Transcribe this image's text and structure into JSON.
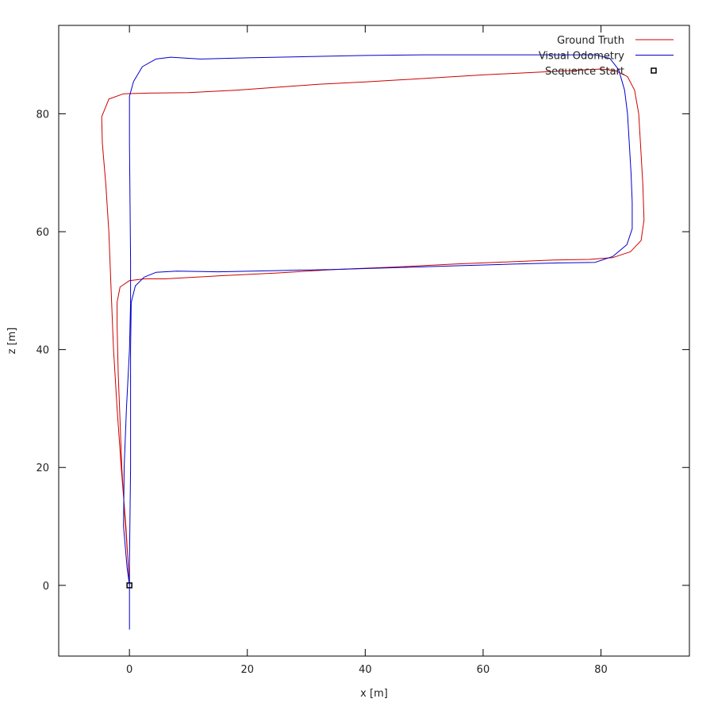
{
  "chart_data": {
    "type": "line",
    "title": "",
    "xlabel": "x [m]",
    "ylabel": "z [m]",
    "xlim": [
      -12,
      95
    ],
    "ylim": [
      -12,
      95
    ],
    "x_ticks": [
      0,
      20,
      40,
      60,
      80
    ],
    "y_ticks": [
      0,
      20,
      40,
      60,
      80
    ],
    "grid": false,
    "legend_position": "top-right",
    "series": [
      {
        "name": "Ground Truth",
        "color": "#cc0000",
        "points": [
          [
            0,
            0
          ],
          [
            -0.3,
            5
          ],
          [
            -0.8,
            12
          ],
          [
            -1.3,
            20
          ],
          [
            -1.6,
            28
          ],
          [
            -1.9,
            36
          ],
          [
            -2.1,
            44
          ],
          [
            -2.1,
            48
          ],
          [
            -1.6,
            50.6
          ],
          [
            0,
            51.7
          ],
          [
            2.5,
            52
          ],
          [
            6,
            52
          ],
          [
            15,
            52.5
          ],
          [
            25,
            53
          ],
          [
            35,
            53.6
          ],
          [
            45,
            54
          ],
          [
            55,
            54.5
          ],
          [
            65,
            54.9
          ],
          [
            72,
            55.2
          ],
          [
            78,
            55.3
          ],
          [
            82,
            55.6
          ],
          [
            85,
            56.6
          ],
          [
            86.8,
            58.5
          ],
          [
            87.3,
            62
          ],
          [
            87.1,
            68
          ],
          [
            86.7,
            75
          ],
          [
            86.4,
            80
          ],
          [
            85.7,
            84
          ],
          [
            84.5,
            86.3
          ],
          [
            82.5,
            87.3
          ],
          [
            80,
            87.6
          ],
          [
            70,
            87.1
          ],
          [
            60,
            86.6
          ],
          [
            50,
            86
          ],
          [
            40,
            85.4
          ],
          [
            32,
            85
          ],
          [
            25,
            84.5
          ],
          [
            18,
            84
          ],
          [
            10,
            83.6
          ],
          [
            3,
            83.5
          ],
          [
            -1,
            83.4
          ],
          [
            -3.5,
            82.5
          ],
          [
            -4.7,
            79.5
          ],
          [
            -4.6,
            75
          ],
          [
            -4,
            68
          ],
          [
            -3.5,
            60
          ],
          [
            -3.1,
            50
          ],
          [
            -2.7,
            40
          ],
          [
            -2.1,
            30
          ],
          [
            -1.4,
            20
          ],
          [
            -0.6,
            10
          ],
          [
            0,
            0
          ]
        ]
      },
      {
        "name": "Visual Odometry",
        "color": "#0000cc",
        "points": [
          [
            0,
            -7.5
          ],
          [
            0,
            -4
          ],
          [
            0,
            0
          ],
          [
            0,
            4
          ],
          [
            0.1,
            12
          ],
          [
            0.2,
            20
          ],
          [
            0.2,
            30
          ],
          [
            0.2,
            40
          ],
          [
            0.3,
            48
          ],
          [
            1,
            50.8
          ],
          [
            2.5,
            52.3
          ],
          [
            4.5,
            53.1
          ],
          [
            8,
            53.3
          ],
          [
            15,
            53.2
          ],
          [
            25,
            53.4
          ],
          [
            35,
            53.6
          ],
          [
            45,
            53.9
          ],
          [
            55,
            54.2
          ],
          [
            65,
            54.5
          ],
          [
            73,
            54.7
          ],
          [
            79,
            54.8
          ],
          [
            82,
            55.8
          ],
          [
            84.4,
            57.8
          ],
          [
            85.3,
            60.5
          ],
          [
            85.3,
            65
          ],
          [
            85.1,
            70
          ],
          [
            84.8,
            75
          ],
          [
            84.5,
            80
          ],
          [
            84,
            84
          ],
          [
            83,
            87.5
          ],
          [
            81.5,
            89.4
          ],
          [
            79,
            90
          ],
          [
            70,
            90
          ],
          [
            60,
            90
          ],
          [
            50,
            90
          ],
          [
            40,
            89.9
          ],
          [
            30,
            89.7
          ],
          [
            20,
            89.5
          ],
          [
            12,
            89.3
          ],
          [
            7,
            89.6
          ],
          [
            4.5,
            89.3
          ],
          [
            2.2,
            88
          ],
          [
            0.7,
            85.5
          ],
          [
            0,
            83
          ],
          [
            0,
            75
          ],
          [
            0.1,
            65
          ],
          [
            0.2,
            55
          ],
          [
            0.2,
            48
          ],
          [
            0,
            40
          ],
          [
            -0.5,
            30
          ],
          [
            -0.9,
            20
          ],
          [
            -1,
            10
          ],
          [
            -0.4,
            3
          ],
          [
            0,
            0
          ]
        ]
      },
      {
        "name": "Sequence Start",
        "color": "#000000",
        "marker": "square",
        "points": [
          [
            0,
            0
          ]
        ]
      }
    ]
  }
}
